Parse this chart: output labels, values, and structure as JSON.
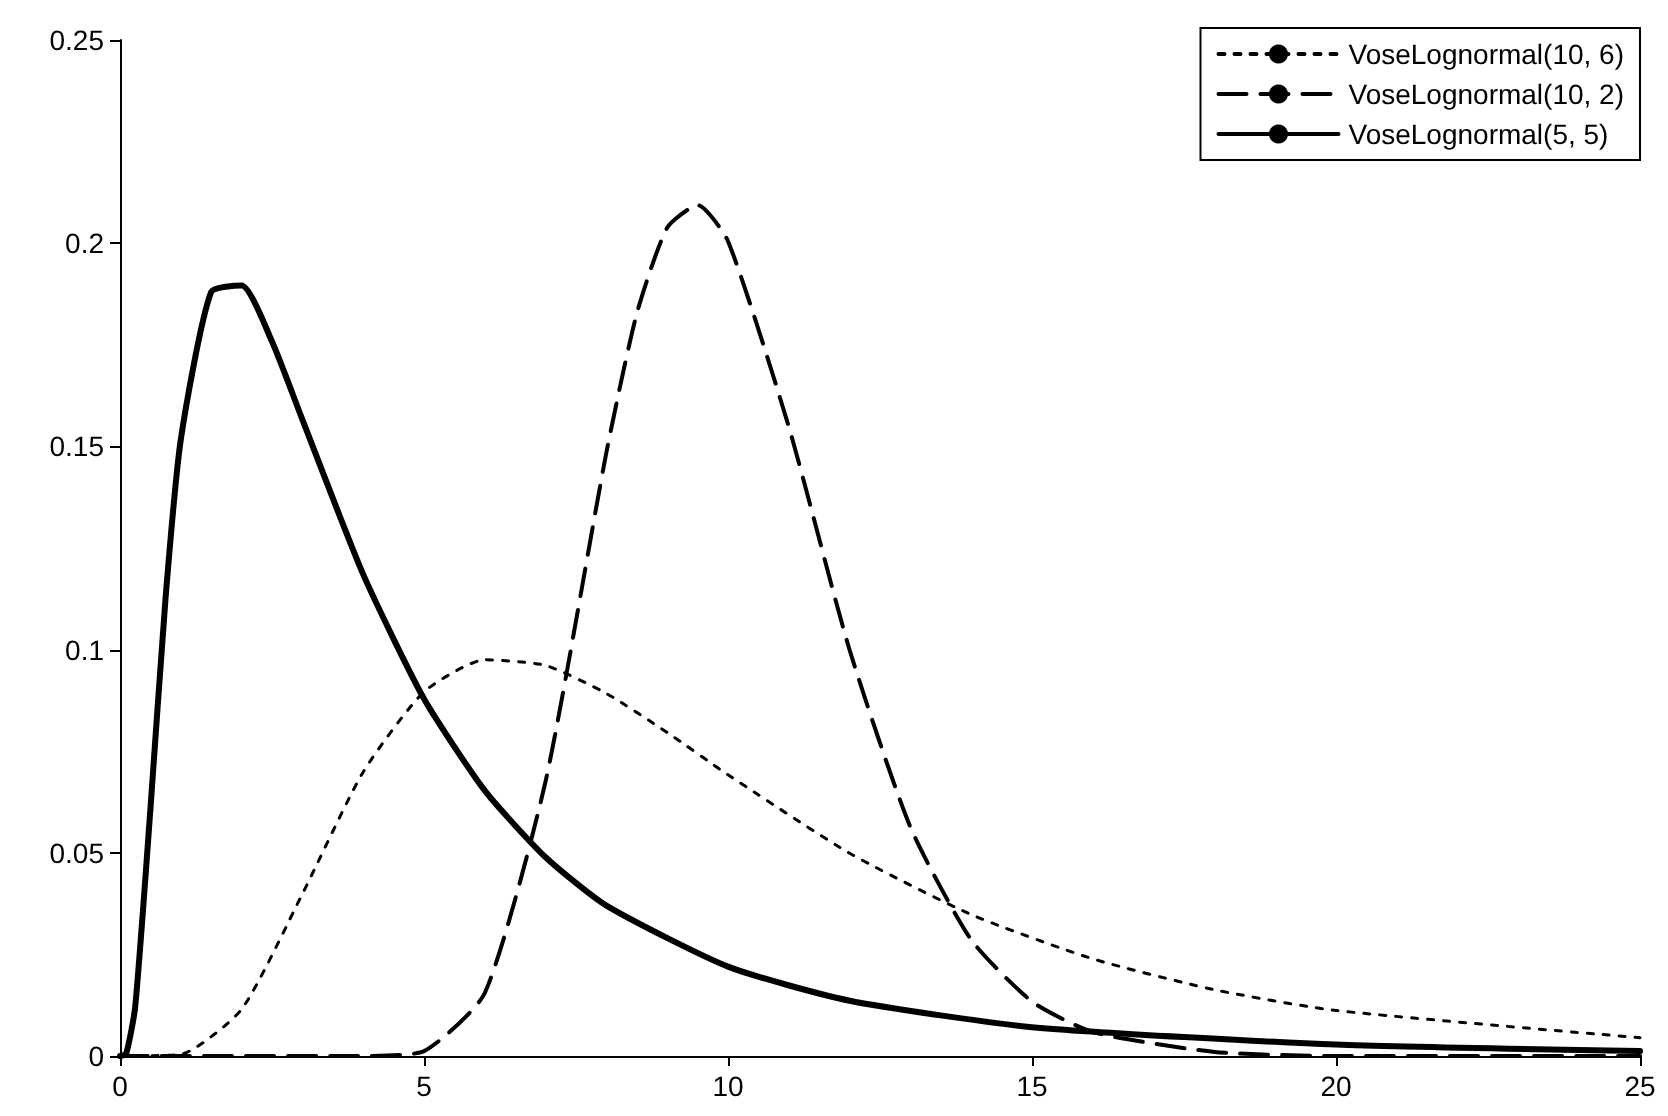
{
  "chart_data": {
    "type": "line",
    "series": [
      {
        "name": "VoseLognormal(10, 6)",
        "color": "#000000",
        "line_style": "dotted",
        "x": [
          0,
          1,
          2,
          3,
          4,
          5,
          6,
          7,
          8,
          9,
          10,
          12,
          14,
          16,
          18,
          20,
          25
        ],
        "values": [
          0,
          0.0004,
          0.0115,
          0.0399,
          0.0699,
          0.0896,
          0.0975,
          0.0961,
          0.0892,
          0.0796,
          0.0692,
          0.0499,
          0.0348,
          0.0239,
          0.0163,
          0.0112,
          0.0045
        ]
      },
      {
        "name": "VoseLognormal(10, 2)",
        "color": "#000000",
        "line_style": "dashed",
        "x": [
          0,
          4,
          5,
          6,
          7,
          8,
          8.5,
          9,
          9.5,
          10,
          11,
          12,
          13,
          14,
          15,
          16,
          18,
          20,
          25
        ],
        "values": [
          0,
          0,
          0.0012,
          0.0155,
          0.0676,
          0.1485,
          0.1827,
          0.2038,
          0.2094,
          0.2005,
          0.1548,
          0.0999,
          0.0563,
          0.0286,
          0.0134,
          0.0059,
          0.001,
          0,
          0
        ]
      },
      {
        "name": "VoseLognormal(5, 5)",
        "color": "#000000",
        "line_style": "solid",
        "x": [
          0,
          0.1,
          0.25,
          0.5,
          0.75,
          1,
          1.5,
          2,
          2.5,
          3,
          4,
          5,
          6,
          7,
          8,
          10,
          12,
          15,
          20,
          25
        ],
        "values": [
          0,
          0.0005,
          0.0121,
          0.0607,
          0.1128,
          0.1517,
          0.188,
          0.1896,
          0.1758,
          0.1566,
          0.1185,
          0.0879,
          0.0653,
          0.0489,
          0.037,
          0.022,
          0.0136,
          0.0071,
          0.0028,
          0.0012
        ]
      }
    ],
    "xlim": [
      0,
      25
    ],
    "xticks": [
      0,
      5,
      10,
      15,
      20,
      25
    ],
    "ylim": [
      0,
      0.25
    ],
    "yticks": [
      0,
      0.05,
      0.1,
      0.15,
      0.2,
      0.25
    ],
    "grid": false,
    "legend": "top right",
    "marker": "none"
  }
}
